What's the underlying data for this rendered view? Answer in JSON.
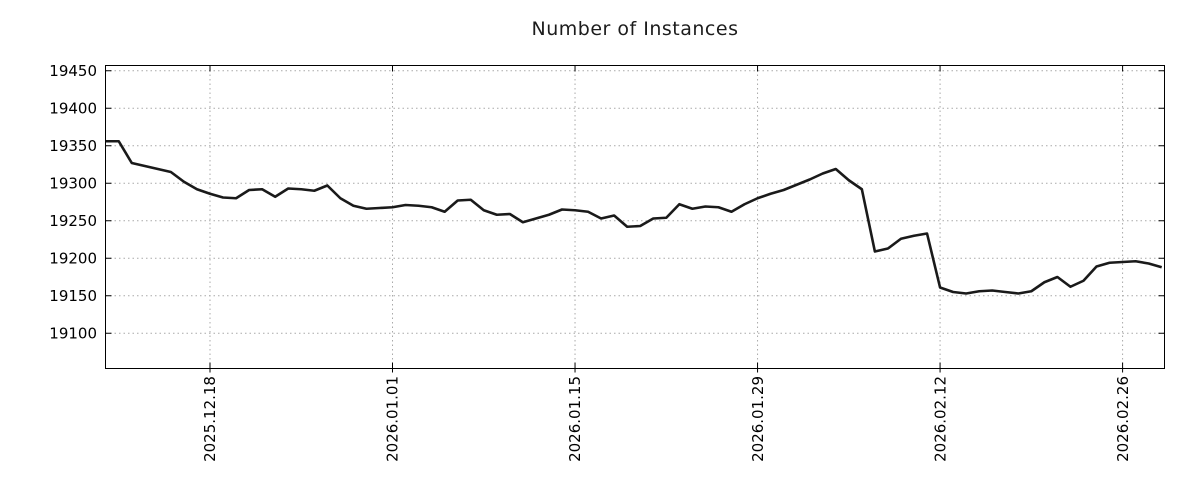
{
  "title": "Number of Instances",
  "chart_data": {
    "type": "line",
    "title": "Number of Instances",
    "series_name": "number-of-instances",
    "grid": true,
    "legend": "none",
    "line_color": "#1a1a1a",
    "grid_color": "#a9a9a9",
    "axis_color": "#000000",
    "background_color": "#ffffff",
    "ylim": [
      19053,
      19457
    ],
    "yticks": [
      19100,
      19150,
      19200,
      19250,
      19300,
      19350,
      19400,
      19450
    ],
    "xticks": [
      {
        "i": 8,
        "label": "2025.12.18"
      },
      {
        "i": 22,
        "label": "2026.01.01"
      },
      {
        "i": 36,
        "label": "2026.01.15"
      },
      {
        "i": 50,
        "label": "2026.01.29"
      },
      {
        "i": 64,
        "label": "2026.02.12"
      },
      {
        "i": 78,
        "label": "2026.02.26"
      }
    ],
    "x": [
      "2025.12.10",
      "2025.12.11",
      "2025.12.12",
      "2025.12.13",
      "2025.12.14",
      "2025.12.15",
      "2025.12.16",
      "2025.12.17",
      "2025.12.18",
      "2025.12.19",
      "2025.12.20",
      "2025.12.21",
      "2025.12.22",
      "2025.12.23",
      "2025.12.24",
      "2025.12.25",
      "2025.12.26",
      "2025.12.27",
      "2025.12.28",
      "2025.12.29",
      "2025.12.30",
      "2025.12.31",
      "2026.01.01",
      "2026.01.02",
      "2026.01.03",
      "2026.01.04",
      "2026.01.05",
      "2026.01.06",
      "2026.01.07",
      "2026.01.08",
      "2026.01.09",
      "2026.01.10",
      "2026.01.11",
      "2026.01.12",
      "2026.01.13",
      "2026.01.14",
      "2026.01.15",
      "2026.01.16",
      "2026.01.17",
      "2026.01.18",
      "2026.01.19",
      "2026.01.20",
      "2026.01.21",
      "2026.01.22",
      "2026.01.23",
      "2026.01.24",
      "2026.01.25",
      "2026.01.26",
      "2026.01.27",
      "2026.01.28",
      "2026.01.29",
      "2026.01.30",
      "2026.01.31",
      "2026.02.01",
      "2026.02.02",
      "2026.02.03",
      "2026.02.04",
      "2026.02.05",
      "2026.02.06",
      "2026.02.07",
      "2026.02.08",
      "2026.02.09",
      "2026.02.10",
      "2026.02.11",
      "2026.02.12",
      "2026.02.13",
      "2026.02.14",
      "2026.02.15",
      "2026.02.16",
      "2026.02.17",
      "2026.02.18",
      "2026.02.19",
      "2026.02.20",
      "2026.02.21",
      "2026.02.22",
      "2026.02.23",
      "2026.02.24",
      "2026.02.25",
      "2026.02.26",
      "2026.02.27",
      "2026.02.28",
      "2026.03.01"
    ],
    "values": [
      19356,
      19356,
      19327,
      19323,
      19319,
      19315,
      19302,
      19292,
      19286,
      19281,
      19280,
      19291,
      19292,
      19282,
      19293,
      19292,
      19290,
      19297,
      19280,
      19270,
      19266,
      19267,
      19268,
      19271,
      19270,
      19268,
      19262,
      19277,
      19278,
      19264,
      19258,
      19259,
      19248,
      19253,
      19258,
      19265,
      19264,
      19262,
      19253,
      19257,
      19242,
      19243,
      19253,
      19254,
      19272,
      19266,
      19269,
      19268,
      19262,
      19272,
      19280,
      19286,
      19291,
      19298,
      19305,
      19313,
      19319,
      19304,
      19292,
      19209,
      19213,
      19226,
      19230,
      19233,
      19161,
      19155,
      19153,
      19156,
      19157,
      19155,
      19153,
      19156,
      19168,
      19175,
      19162,
      19170,
      19189,
      19194,
      19195,
      19196,
      19193,
      19188
    ]
  }
}
